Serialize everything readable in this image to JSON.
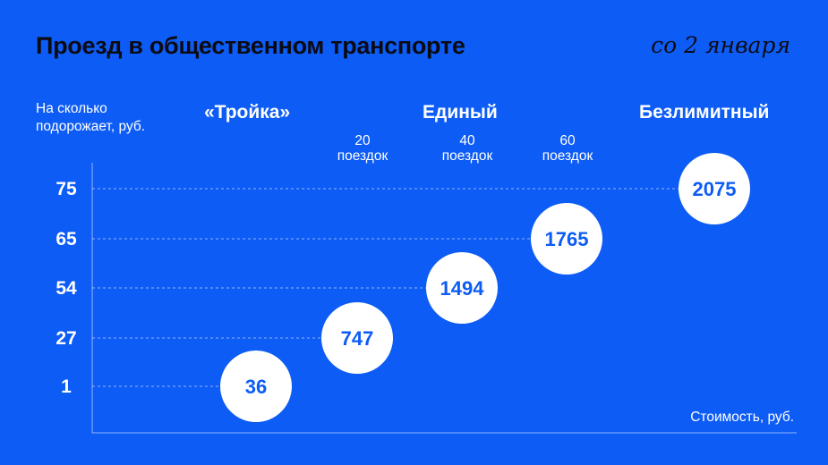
{
  "header": {
    "title": "Проезд в общественном транспорте",
    "date": "со 2 января"
  },
  "chart_data": {
    "type": "scatter",
    "ylabel": "На сколько подорожает, руб.",
    "xlabel": "Стоимость, руб.",
    "groups": [
      "«Тройка»",
      "Единый",
      "Безлимитный"
    ],
    "subgroups": [
      {
        "num": "20",
        "word": "поездок"
      },
      {
        "num": "40",
        "word": "поездок"
      },
      {
        "num": "60",
        "word": "поездок"
      }
    ],
    "categories": [
      "«Тройка»",
      "20 поездок",
      "40 поездок",
      "60 поездок",
      "Безлимитный"
    ],
    "y_ticks": [
      1,
      27,
      54,
      65,
      75
    ],
    "points": [
      {
        "category": "«Тройка»",
        "increase": 1,
        "cost": 36
      },
      {
        "category": "20 поездок",
        "increase": 27,
        "cost": 747
      },
      {
        "category": "40 поездок",
        "increase": 54,
        "cost": 1494
      },
      {
        "category": "60 поездок",
        "increase": 65,
        "cost": 1765
      },
      {
        "category": "Безлимитный",
        "increase": 75,
        "cost": 2075
      }
    ],
    "grid": true,
    "colors": {
      "background": "#0d5cf5",
      "bubble": "#ffffff",
      "bubble_text": "#0d5cf5",
      "title": "#0b0b14"
    }
  }
}
